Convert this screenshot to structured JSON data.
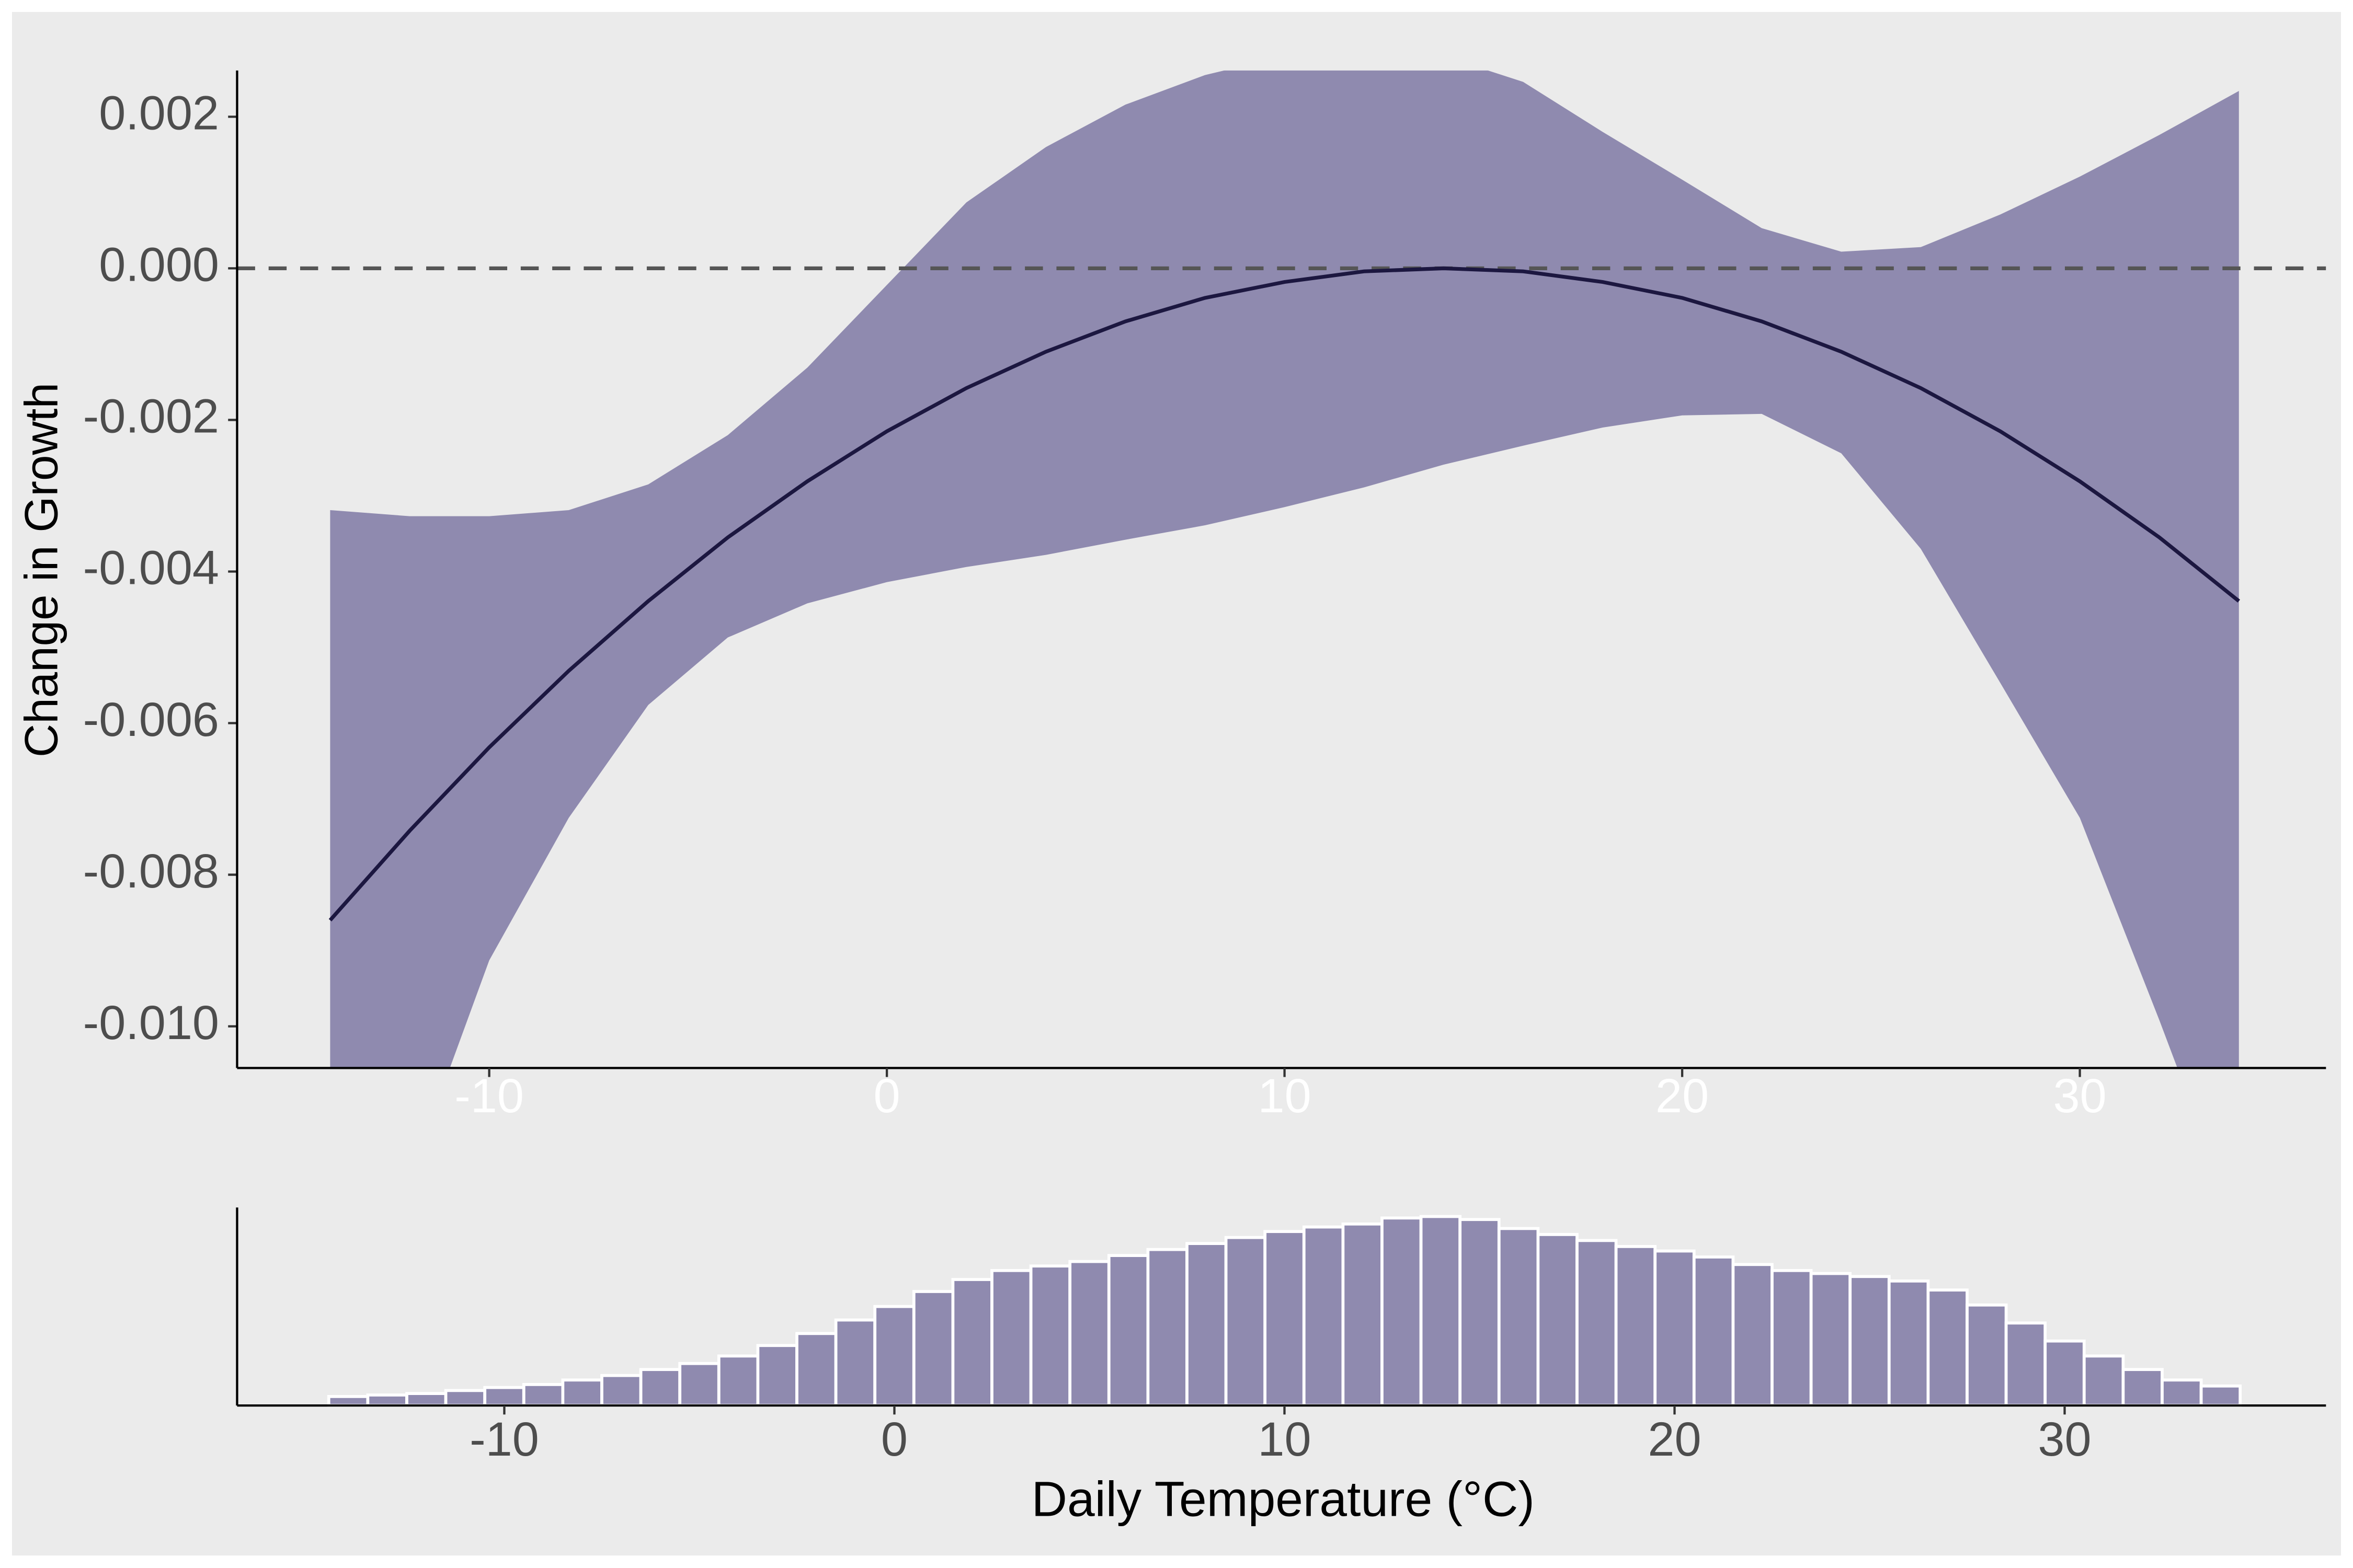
{
  "chart_data": [
    {
      "type": "line",
      "ylabel": "Change in Growth",
      "x": [
        -14,
        -12,
        -10,
        -8,
        -6,
        -4,
        -2,
        0,
        2,
        4,
        6,
        8,
        10,
        12,
        14,
        16,
        18,
        20,
        22,
        24,
        26,
        28,
        30,
        32,
        34
      ],
      "values": [
        -0.0086,
        -0.00742,
        -0.00632,
        -0.00531,
        -0.00439,
        -0.00355,
        -0.00281,
        -0.00215,
        -0.00158,
        -0.0011,
        -0.0007,
        -0.00039,
        -0.00018,
        -4e-05,
        0,
        -4e-05,
        -0.00018,
        -0.00039,
        -0.0007,
        -0.0011,
        -0.00158,
        -0.00215,
        -0.00281,
        -0.00355,
        -0.00439
      ],
      "band_upper": [
        -0.00319,
        -0.00327,
        -0.00327,
        -0.00319,
        -0.00285,
        -0.0022,
        -0.00131,
        -0.00022,
        0.00087,
        0.0016,
        0.00216,
        0.00255,
        0.0028,
        0.0029,
        0.0028,
        0.00246,
        0.0018,
        0.00117,
        0.00053,
        0.00022,
        0.00028,
        0.00071,
        0.00121,
        0.00176,
        0.00234
      ],
      "band_lower": [
        -0.0145,
        -0.012,
        -0.00913,
        -0.00725,
        -0.00576,
        -0.00487,
        -0.00442,
        -0.00414,
        -0.00394,
        -0.00378,
        -0.00358,
        -0.00339,
        -0.00315,
        -0.00289,
        -0.00259,
        -0.00234,
        -0.0021,
        -0.00194,
        -0.00192,
        -0.00244,
        -0.0037,
        -0.00547,
        -0.00725,
        -0.00992,
        -0.0127
      ],
      "color": "#1c1740",
      "band_color": "#8f8aaf",
      "reference_line": 0,
      "xlim": [
        -16.34,
        36.19
      ],
      "xticks": [
        -10,
        0,
        10,
        20,
        30
      ],
      "ylim": [
        -0.01055,
        0.00261
      ],
      "yticks": [
        {
          "value": -0.01,
          "label": "-0.010"
        },
        -0.008,
        -0.006,
        -0.004,
        -0.002,
        {
          "value": 0,
          "label": "0.000"
        },
        0.002
      ]
    },
    {
      "type": "histogram",
      "xlabel": "Daily Temperature (°C)",
      "bins": [
        -14.5,
        -13.5,
        -12.5,
        -11.5,
        -10.5,
        -9.5,
        -8.5,
        -7.5,
        -6.5,
        -5.5,
        -4.5,
        -3.5,
        -2.5,
        -1.5,
        -0.5,
        0.5,
        1.5,
        2.5,
        3.5,
        4.5,
        5.5,
        6.5,
        7.5,
        8.5,
        9.5,
        10.5,
        11.5,
        12.5,
        13.5,
        14.5,
        15.5,
        16.5,
        17.5,
        18.5,
        19.5,
        20.5,
        21.5,
        22.5,
        23.5,
        24.5,
        25.5,
        26.5,
        27.5,
        28.5,
        29.5,
        30.5,
        31.5,
        32.5,
        33.5,
        34.5
      ],
      "values": [
        6,
        7,
        8,
        10,
        12,
        14,
        17,
        20,
        24,
        28,
        33,
        40,
        48,
        57,
        66,
        76,
        84,
        90,
        93,
        96,
        100,
        104,
        108,
        112,
        116,
        119,
        121,
        125,
        126,
        124,
        118,
        114,
        110,
        106,
        103,
        99,
        94,
        90,
        88,
        86,
        83,
        77,
        67,
        55,
        43,
        33,
        24,
        17,
        13
      ],
      "color": "#8f8aaf",
      "xlim": [
        -16.85,
        36.7
      ],
      "xticks": [
        -10,
        0,
        10,
        20,
        30
      ],
      "ylim": [
        0,
        132
      ]
    }
  ]
}
